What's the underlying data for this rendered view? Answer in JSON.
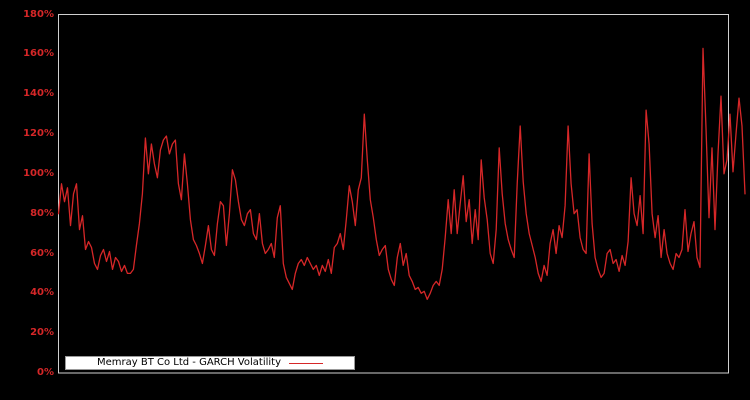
{
  "chart": {
    "background_color": "#000000",
    "frame_color": "#d0d0d0",
    "tick_label_color": "#d62728",
    "y_ticks": [
      "180%",
      "160%",
      "140%",
      "120%",
      "100%",
      "80%",
      "60%",
      "40%",
      "20%",
      "0%"
    ],
    "legend": {
      "label": "Memray BT Co Ltd - GARCH Volatility",
      "sample_color": "#d62728"
    }
  },
  "chart_data": {
    "type": "line",
    "title": "Memray BT Co Ltd - GARCH Volatility",
    "xlabel": "",
    "ylabel": "",
    "x_ticks": [],
    "y_unit": "percent",
    "ylim": [
      0,
      180
    ],
    "y_tick_step": 20,
    "grid": false,
    "legend_position": "bottom-left",
    "plot_style": "black background, red series line, data extends slightly past right frame edge",
    "series": [
      {
        "name": "Memray BT Co Ltd - GARCH Volatility",
        "color": "#d62728",
        "unit": "%",
        "values": [
          80,
          95,
          86,
          93,
          74,
          90,
          95,
          72,
          79,
          62,
          66,
          63,
          55,
          52,
          59,
          62,
          56,
          61,
          52,
          58,
          56,
          51,
          54,
          50,
          50,
          52,
          64,
          75,
          90,
          118,
          100,
          115,
          105,
          98,
          112,
          117,
          119,
          110,
          115,
          117,
          95,
          87,
          110,
          95,
          77,
          67,
          64,
          60,
          55,
          64,
          74,
          62,
          59,
          75,
          86,
          84,
          64,
          80,
          102,
          97,
          86,
          77,
          74,
          80,
          82,
          70,
          67,
          80,
          65,
          60,
          62,
          65,
          58,
          78,
          84,
          55,
          48,
          45,
          42,
          50,
          55,
          57,
          54,
          58,
          55,
          52,
          54,
          49,
          54,
          51,
          57,
          50,
          63,
          65,
          70,
          62,
          77,
          94,
          86,
          74,
          92,
          98,
          130,
          107,
          87,
          78,
          67,
          59,
          62,
          64,
          52,
          47,
          44,
          58,
          65,
          54,
          60,
          49,
          46,
          42,
          43,
          40,
          41,
          37,
          40,
          44,
          46,
          44,
          52,
          68,
          87,
          70,
          92,
          70,
          85,
          99,
          76,
          87,
          65,
          82,
          67,
          107,
          88,
          77,
          60,
          55,
          72,
          113,
          90,
          75,
          67,
          62,
          58,
          95,
          124,
          96,
          80,
          70,
          64,
          58,
          50,
          46,
          54,
          49,
          65,
          72,
          60,
          74,
          68,
          84,
          124,
          95,
          80,
          82,
          68,
          62,
          60,
          110,
          75,
          58,
          52,
          48,
          50,
          60,
          62,
          55,
          57,
          51,
          59,
          54,
          66,
          98,
          80,
          74,
          89,
          70,
          132,
          115,
          80,
          68,
          79,
          58,
          72,
          60,
          55,
          52,
          60,
          58,
          62,
          82,
          61,
          70,
          76,
          58,
          53,
          163,
          123,
          78,
          113,
          72,
          110,
          139,
          100,
          107,
          130,
          101,
          120,
          138,
          124,
          90
        ]
      }
    ]
  }
}
